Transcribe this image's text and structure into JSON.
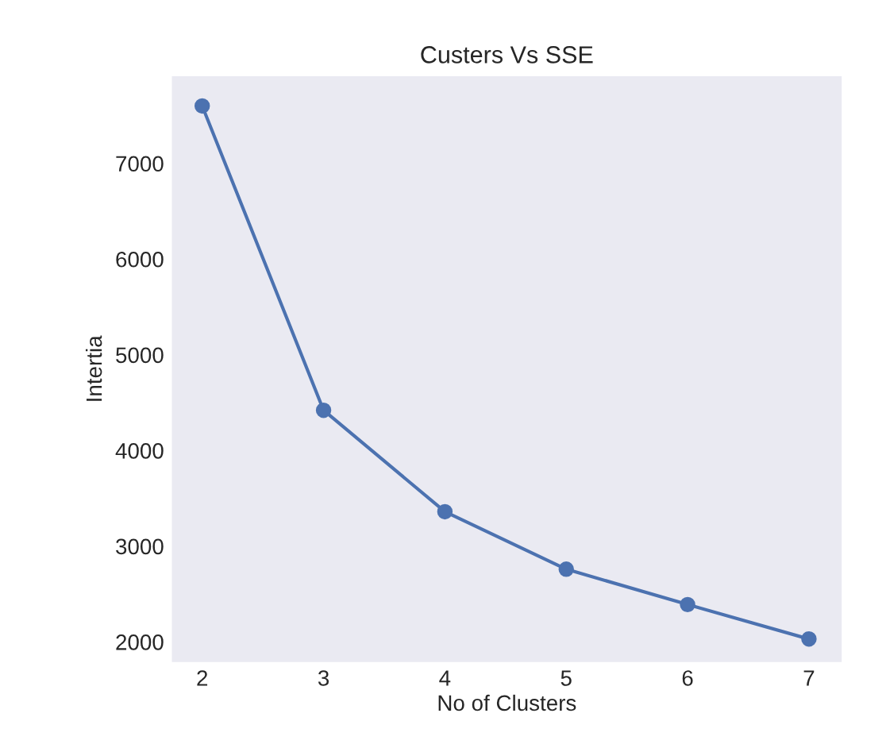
{
  "chart_data": {
    "type": "line",
    "title": "Custers Vs SSE",
    "xlabel": "No of Clusters",
    "ylabel": "Intertia",
    "x": [
      2,
      3,
      4,
      5,
      6,
      7
    ],
    "series": [
      {
        "color": "#4c72b0",
        "values": [
          7600,
          4420,
          3360,
          2760,
          2390,
          2030
        ]
      }
    ],
    "xlim": [
      1.75,
      7.27
    ],
    "xticks": [
      2,
      3,
      4,
      5,
      6,
      7
    ],
    "ylim": [
      1790,
      7910
    ],
    "yticks": [
      2000,
      3000,
      4000,
      5000,
      6000,
      7000
    ],
    "grid": false,
    "marker": "circle",
    "line_style": "solid"
  }
}
